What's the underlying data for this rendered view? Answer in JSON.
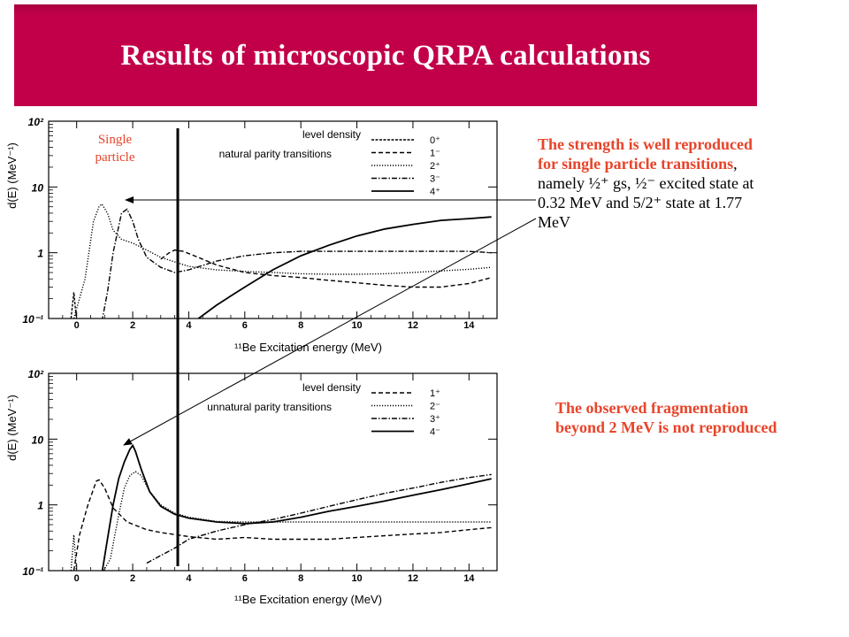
{
  "slide": {
    "title": "Results of microscopic QRPA calculations",
    "single_particle_label": [
      "Single",
      "particle"
    ],
    "note_strength": {
      "bold_part": "The strength is well reproduced for single particle transitions",
      "plain_part": ", namely ½⁺ gs, ½⁻ excited state at 0.32 MeV and 5/2⁺ state at 1.77 MeV"
    },
    "note_fragmentation": "The observed fragmentation beyond 2 MeV is not reproduced",
    "colors": {
      "banner": "#c2004a",
      "accent_text": "#e8442a"
    }
  },
  "chart_data": [
    {
      "type": "line",
      "xlabel": "¹¹Be Excitation energy (MeV)",
      "ylabel": "d(E) (MeV⁻¹)",
      "xlim": [
        -1,
        15
      ],
      "ylim": [
        0.1,
        100
      ],
      "yscale": "log",
      "x_ticks": [
        "0",
        "2",
        "4",
        "6",
        "8",
        "10",
        "12",
        "14"
      ],
      "y_ticks": [
        "10⁻¹",
        "1",
        "10",
        "10²"
      ],
      "legend_heading": [
        "level density",
        "natural parity transitions"
      ],
      "legend_position": "top-right",
      "series": [
        {
          "name": "0⁺",
          "style": "dense-dash",
          "x": [
            -0.2,
            -0.1,
            0.0,
            0.4,
            0.9,
            1.1
          ],
          "y": [
            0.1,
            0.25,
            0.09,
            0.09,
            0.09,
            0.09
          ]
        },
        {
          "name": "1⁻",
          "style": "dash",
          "x": [
            3.0,
            3.3,
            3.5,
            3.8,
            4.2,
            5,
            6,
            7,
            8,
            9,
            10,
            11,
            12,
            13,
            14,
            14.8
          ],
          "y": [
            0.8,
            1.0,
            1.1,
            1.05,
            0.9,
            0.65,
            0.5,
            0.45,
            0.42,
            0.38,
            0.35,
            0.32,
            0.3,
            0.3,
            0.34,
            0.42
          ]
        },
        {
          "name": "2⁺",
          "style": "dot",
          "x": [
            -0.1,
            0.3,
            0.6,
            0.8,
            0.9,
            1.1,
            1.3,
            1.6,
            2.0,
            2.5,
            3,
            4,
            5,
            6,
            7,
            8,
            9,
            10,
            11,
            12,
            13,
            14,
            14.8
          ],
          "y": [
            0.1,
            0.4,
            3.0,
            5.0,
            5.5,
            4.0,
            2.2,
            1.6,
            1.4,
            1.1,
            0.85,
            0.62,
            0.55,
            0.52,
            0.5,
            0.48,
            0.47,
            0.47,
            0.48,
            0.5,
            0.53,
            0.56,
            0.6
          ]
        },
        {
          "name": "3⁻",
          "style": "dashdot",
          "x": [
            0.9,
            1.1,
            1.3,
            1.6,
            1.8,
            2.0,
            2.2,
            2.5,
            3,
            3.5,
            4,
            5,
            6,
            7,
            8,
            9,
            10,
            11,
            12,
            13,
            14,
            14.8
          ],
          "y": [
            0.09,
            0.25,
            1.0,
            4.0,
            4.6,
            3.0,
            1.6,
            0.85,
            0.6,
            0.5,
            0.55,
            0.75,
            0.9,
            1.0,
            1.05,
            1.05,
            1.05,
            1.05,
            1.05,
            1.05,
            1.05,
            1.0
          ]
        },
        {
          "name": "4⁺",
          "style": "solid",
          "x": [
            4.2,
            4.6,
            5.0,
            5.5,
            6,
            7,
            8,
            9,
            10,
            11,
            12,
            13,
            14,
            14.8
          ],
          "y": [
            0.09,
            0.12,
            0.16,
            0.22,
            0.3,
            0.55,
            0.9,
            1.3,
            1.8,
            2.3,
            2.7,
            3.1,
            3.3,
            3.5
          ]
        }
      ]
    },
    {
      "type": "line",
      "xlabel": "¹¹Be Excitation energy (MeV)",
      "ylabel": "d(E) (MeV⁻¹)",
      "xlim": [
        -1,
        15
      ],
      "ylim": [
        0.1,
        100
      ],
      "yscale": "log",
      "x_ticks": [
        "0",
        "2",
        "4",
        "6",
        "8",
        "10",
        "12",
        "14"
      ],
      "y_ticks": [
        "10⁻¹",
        "1",
        "10",
        "10²"
      ],
      "legend_heading": [
        "level density",
        "unnatural parity transitions"
      ],
      "legend_position": "top-right",
      "series": [
        {
          "name": "1⁺",
          "style": "dash",
          "x": [
            -0.1,
            0.1,
            0.4,
            0.7,
            0.8,
            1.0,
            1.3,
            1.8,
            2.5,
            3,
            4,
            5,
            6,
            7,
            8,
            9,
            10,
            11,
            12,
            13,
            14,
            14.8
          ],
          "y": [
            0.1,
            0.35,
            1.0,
            2.3,
            2.4,
            1.8,
            0.9,
            0.55,
            0.42,
            0.38,
            0.33,
            0.3,
            0.32,
            0.3,
            0.3,
            0.3,
            0.32,
            0.34,
            0.36,
            0.38,
            0.42,
            0.45
          ]
        },
        {
          "name": "2⁻",
          "style": "dot",
          "x": [
            -0.2,
            -0.1,
            0.0,
            0.6,
            0.9,
            1.2,
            1.5,
            1.7,
            1.9,
            2.1,
            2.3,
            2.6,
            3.0,
            3.5,
            4,
            5,
            6,
            7,
            8,
            9,
            10,
            11,
            12,
            13,
            14,
            14.8
          ],
          "y": [
            0.1,
            0.35,
            0.09,
            0.09,
            0.09,
            0.15,
            0.7,
            1.8,
            2.8,
            3.2,
            2.8,
            1.6,
            1.0,
            0.75,
            0.65,
            0.56,
            0.55,
            0.55,
            0.55,
            0.55,
            0.55,
            0.55,
            0.55,
            0.55,
            0.55,
            0.55
          ]
        },
        {
          "name": "3⁺",
          "style": "dashdot",
          "x": [
            2.5,
            3.0,
            3.5,
            4,
            5,
            6,
            7,
            8,
            9,
            10,
            11,
            12,
            13,
            14,
            14.8
          ],
          "y": [
            0.13,
            0.17,
            0.22,
            0.3,
            0.4,
            0.5,
            0.6,
            0.75,
            0.95,
            1.2,
            1.5,
            1.8,
            2.2,
            2.6,
            2.9
          ]
        },
        {
          "name": "4⁻",
          "style": "solid",
          "x": [
            0.9,
            1.1,
            1.3,
            1.5,
            1.7,
            1.9,
            2.0,
            2.1,
            2.3,
            2.6,
            3.0,
            3.5,
            4,
            5,
            6,
            7,
            8,
            9,
            10,
            11,
            12,
            13,
            14,
            14.8
          ],
          "y": [
            0.09,
            0.3,
            1.0,
            2.5,
            4.5,
            7.0,
            8.0,
            6.5,
            3.5,
            1.6,
            0.95,
            0.72,
            0.63,
            0.55,
            0.52,
            0.55,
            0.65,
            0.8,
            0.95,
            1.15,
            1.4,
            1.7,
            2.1,
            2.5
          ]
        }
      ]
    }
  ]
}
